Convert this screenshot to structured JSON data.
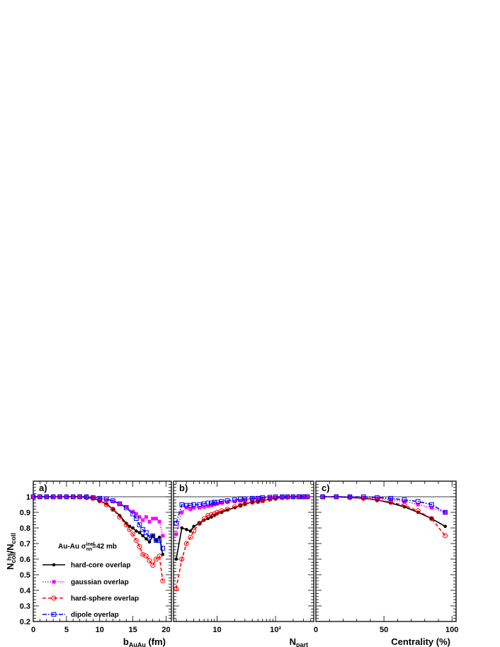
{
  "figure": {
    "y_axis_title": "N_coll^hs/N_coll",
    "legend": {
      "header_prefix": "Au-Au",
      "header_sigma": "σ",
      "header_sup": "inel",
      "header_sub": "nn",
      "header_suffix": "=42 mb",
      "entries": [
        {
          "label": "hard-core overlap",
          "color": "#000000",
          "dash": "solid",
          "marker": "dot"
        },
        {
          "label": "gaussian overlap",
          "color": "#ff00ff",
          "dash": "dotted",
          "marker": "square-filled"
        },
        {
          "label": "hard-sphere overlap",
          "color": "#ff0000",
          "dash": "dashed",
          "marker": "circle-open"
        },
        {
          "label": "dipole overlap",
          "color": "#0000ff",
          "dash": "dashdot",
          "marker": "square-open"
        }
      ]
    }
  },
  "chart_data": [
    {
      "type": "line",
      "panel_label": "a)",
      "xlabel_main": "b",
      "xlabel_sub": "AuAu",
      "xlabel_unit": " (fm)",
      "xlim": [
        0,
        20.8
      ],
      "ylim": [
        0.2,
        1.1
      ],
      "x_ticks": [
        0,
        5,
        10,
        15,
        20
      ],
      "x_tick_labels": [
        "0",
        "5",
        "10",
        "15",
        "20"
      ],
      "y_ticks": [
        0.2,
        0.3,
        0.4,
        0.5,
        0.6,
        0.7,
        0.8,
        0.9,
        1
      ],
      "y_tick_labels": [
        "0.2",
        "0.3",
        "0.4",
        "0.5",
        "0.6",
        "0.7",
        "0.8",
        "0.9",
        "1"
      ],
      "reference_line": 1.0,
      "series": [
        {
          "key": "hard-core",
          "x": [
            0,
            1,
            2,
            3,
            4,
            5,
            6,
            7,
            8,
            9,
            10,
            11,
            12,
            13,
            14,
            14.5,
            15,
            15.5,
            16,
            16.5,
            17,
            17.5,
            18,
            18.5,
            19,
            19.5
          ],
          "y": [
            1,
            1,
            1,
            1,
            1,
            1,
            1,
            1,
            0.995,
            0.99,
            0.975,
            0.955,
            0.92,
            0.88,
            0.83,
            0.81,
            0.8,
            0.78,
            0.77,
            0.75,
            0.73,
            0.71,
            0.75,
            0.72,
            0.74,
            0.63
          ]
        },
        {
          "key": "gaussian",
          "x": [
            0,
            1,
            2,
            3,
            4,
            5,
            6,
            7,
            8,
            9,
            10,
            11,
            12,
            13,
            14,
            15,
            15.5,
            16,
            16.5,
            17,
            17.5,
            18,
            18.5,
            19,
            19.5
          ],
          "y": [
            1,
            1,
            1,
            1,
            1,
            1,
            1,
            1,
            1,
            0.995,
            0.99,
            0.98,
            0.97,
            0.955,
            0.935,
            0.905,
            0.89,
            0.87,
            0.85,
            0.87,
            0.84,
            0.86,
            0.86,
            0.84,
            0.75
          ]
        },
        {
          "key": "hard-sphere",
          "x": [
            0,
            1,
            2,
            3,
            4,
            5,
            6,
            7,
            8,
            9,
            10,
            11,
            12,
            13,
            14,
            14.5,
            15,
            15.5,
            16,
            16.5,
            17,
            17.5,
            18,
            18.5,
            19,
            19.5
          ],
          "y": [
            1,
            1,
            1,
            1,
            1,
            1,
            1,
            1,
            0.995,
            0.99,
            0.975,
            0.95,
            0.92,
            0.87,
            0.82,
            0.79,
            0.76,
            0.72,
            0.68,
            0.63,
            0.62,
            0.59,
            0.56,
            0.6,
            0.62,
            0.46
          ]
        },
        {
          "key": "dipole",
          "x": [
            0,
            1,
            2,
            3,
            4,
            5,
            6,
            7,
            8,
            9,
            10,
            11,
            12,
            13,
            14,
            15,
            15.5,
            16,
            16.5,
            17,
            17.5,
            18,
            18.5,
            19,
            19.5
          ],
          "y": [
            1,
            1,
            1,
            1,
            1,
            1,
            1,
            1,
            1,
            0.995,
            0.99,
            0.985,
            0.975,
            0.955,
            0.93,
            0.89,
            0.86,
            0.82,
            0.79,
            0.77,
            0.74,
            0.75,
            0.72,
            0.72,
            0.67
          ]
        }
      ]
    },
    {
      "type": "line",
      "panel_label": "b)",
      "xlabel_main": "N",
      "xlabel_sub": "part",
      "xlabel_unit": "",
      "xscale": "log",
      "xlim": [
        1.8,
        450
      ],
      "ylim": [
        0.2,
        1.1
      ],
      "x_ticks": [
        10,
        100
      ],
      "x_tick_labels": [
        "10",
        "10²"
      ],
      "reference_line": 1.0,
      "series": [
        {
          "key": "hard-core",
          "x": [
            2,
            2.5,
            3,
            3.5,
            4,
            5,
            6,
            7,
            8,
            9,
            10,
            12,
            15,
            20,
            25,
            30,
            40,
            50,
            60,
            80,
            100,
            130,
            160,
            200,
            250,
            300,
            350
          ],
          "y": [
            0.6,
            0.8,
            0.79,
            0.78,
            0.81,
            0.83,
            0.85,
            0.86,
            0.87,
            0.88,
            0.89,
            0.9,
            0.915,
            0.93,
            0.945,
            0.955,
            0.965,
            0.97,
            0.975,
            0.985,
            0.99,
            0.995,
            0.997,
            1,
            1,
            1,
            1
          ]
        },
        {
          "key": "gaussian",
          "x": [
            2,
            2.5,
            3,
            3.5,
            4,
            5,
            6,
            7,
            8,
            9,
            10,
            12,
            15,
            20,
            25,
            30,
            40,
            50,
            60,
            80,
            100,
            130,
            160,
            200,
            250,
            300,
            350
          ],
          "y": [
            0.76,
            0.9,
            0.93,
            0.92,
            0.93,
            0.93,
            0.935,
            0.94,
            0.945,
            0.95,
            0.955,
            0.96,
            0.965,
            0.97,
            0.975,
            0.98,
            0.985,
            0.99,
            0.99,
            0.995,
            0.997,
            1,
            1,
            1,
            1,
            1,
            1
          ]
        },
        {
          "key": "hard-sphere",
          "x": [
            2,
            2.5,
            3,
            3.5,
            4,
            5,
            6,
            7,
            8,
            9,
            10,
            12,
            15,
            20,
            25,
            30,
            40,
            50,
            60,
            80,
            100,
            130,
            160,
            200,
            250,
            300,
            350
          ],
          "y": [
            0.41,
            0.6,
            0.7,
            0.74,
            0.78,
            0.83,
            0.86,
            0.88,
            0.885,
            0.89,
            0.9,
            0.91,
            0.92,
            0.935,
            0.945,
            0.955,
            0.965,
            0.97,
            0.975,
            0.985,
            0.99,
            0.995,
            0.997,
            1,
            1,
            1,
            1
          ]
        },
        {
          "key": "dipole",
          "x": [
            2,
            2.5,
            3,
            3.5,
            4,
            5,
            6,
            7,
            8,
            9,
            10,
            12,
            15,
            20,
            25,
            30,
            40,
            50,
            60,
            80,
            100,
            130,
            160,
            200,
            250,
            300,
            350
          ],
          "y": [
            0.83,
            0.95,
            0.945,
            0.945,
            0.95,
            0.95,
            0.955,
            0.96,
            0.96,
            0.965,
            0.965,
            0.97,
            0.975,
            0.98,
            0.985,
            0.985,
            0.99,
            0.99,
            0.995,
            0.997,
            1,
            1,
            1,
            1,
            1,
            1,
            1
          ]
        }
      ]
    },
    {
      "type": "line",
      "panel_label": "c)",
      "xlabel_main": "Centrality (%)",
      "xlabel_sub": "",
      "xlabel_unit": "",
      "xlim": [
        0,
        103
      ],
      "ylim": [
        0.2,
        1.1
      ],
      "x_ticks": [
        0,
        50,
        100
      ],
      "x_tick_labels": [
        "0",
        "50",
        "100"
      ],
      "reference_line": 1.0,
      "series": [
        {
          "key": "hard-core",
          "x": [
            5,
            15,
            25,
            35,
            45,
            55,
            65,
            75,
            85,
            95
          ],
          "y": [
            1,
            1,
            0.995,
            0.99,
            0.98,
            0.96,
            0.935,
            0.9,
            0.86,
            0.81
          ]
        },
        {
          "key": "gaussian",
          "x": [
            5,
            15,
            25,
            35,
            45,
            55,
            65,
            75,
            85,
            95
          ],
          "y": [
            1,
            1,
            1,
            0.995,
            0.99,
            0.98,
            0.97,
            0.95,
            0.93,
            0.9
          ]
        },
        {
          "key": "hard-sphere",
          "x": [
            5,
            15,
            25,
            35,
            45,
            55,
            65,
            75,
            85,
            95
          ],
          "y": [
            1,
            1,
            0.995,
            0.99,
            0.98,
            0.965,
            0.945,
            0.91,
            0.86,
            0.75
          ]
        },
        {
          "key": "dipole",
          "x": [
            5,
            15,
            25,
            35,
            45,
            55,
            65,
            75,
            85,
            95
          ],
          "y": [
            1,
            1,
            1,
            1,
            0.995,
            0.99,
            0.98,
            0.97,
            0.95,
            0.9
          ]
        }
      ]
    }
  ]
}
